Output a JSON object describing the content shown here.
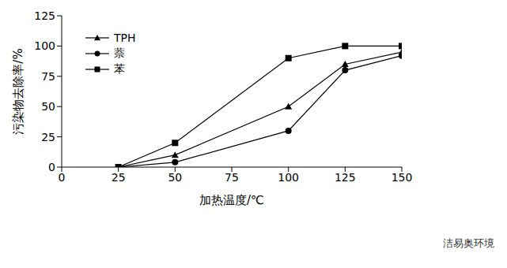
{
  "chart_data": {
    "type": "line",
    "x_label": "加热温度/℃",
    "y_label": "污染物去除率/%",
    "x": [
      25,
      50,
      100,
      125,
      150
    ],
    "xlim": [
      0,
      150
    ],
    "xticks": [
      0,
      25,
      50,
      75,
      100,
      125,
      150
    ],
    "ylim": [
      0,
      125
    ],
    "yticks": [
      0,
      25,
      50,
      75,
      100,
      125
    ],
    "legend": "upper left",
    "annotations": [
      "洁易奥环境"
    ],
    "series": [
      {
        "name": "TPH",
        "color": "#000000",
        "marker": "triangle",
        "values": [
          0,
          10,
          50,
          85,
          95
        ]
      },
      {
        "name": "萘",
        "color": "#000000",
        "marker": "circle",
        "values": [
          0,
          4,
          30,
          80,
          92
        ]
      },
      {
        "name": "苯",
        "color": "#000000",
        "marker": "square",
        "values": [
          0,
          20,
          90,
          100,
          100
        ]
      }
    ]
  }
}
